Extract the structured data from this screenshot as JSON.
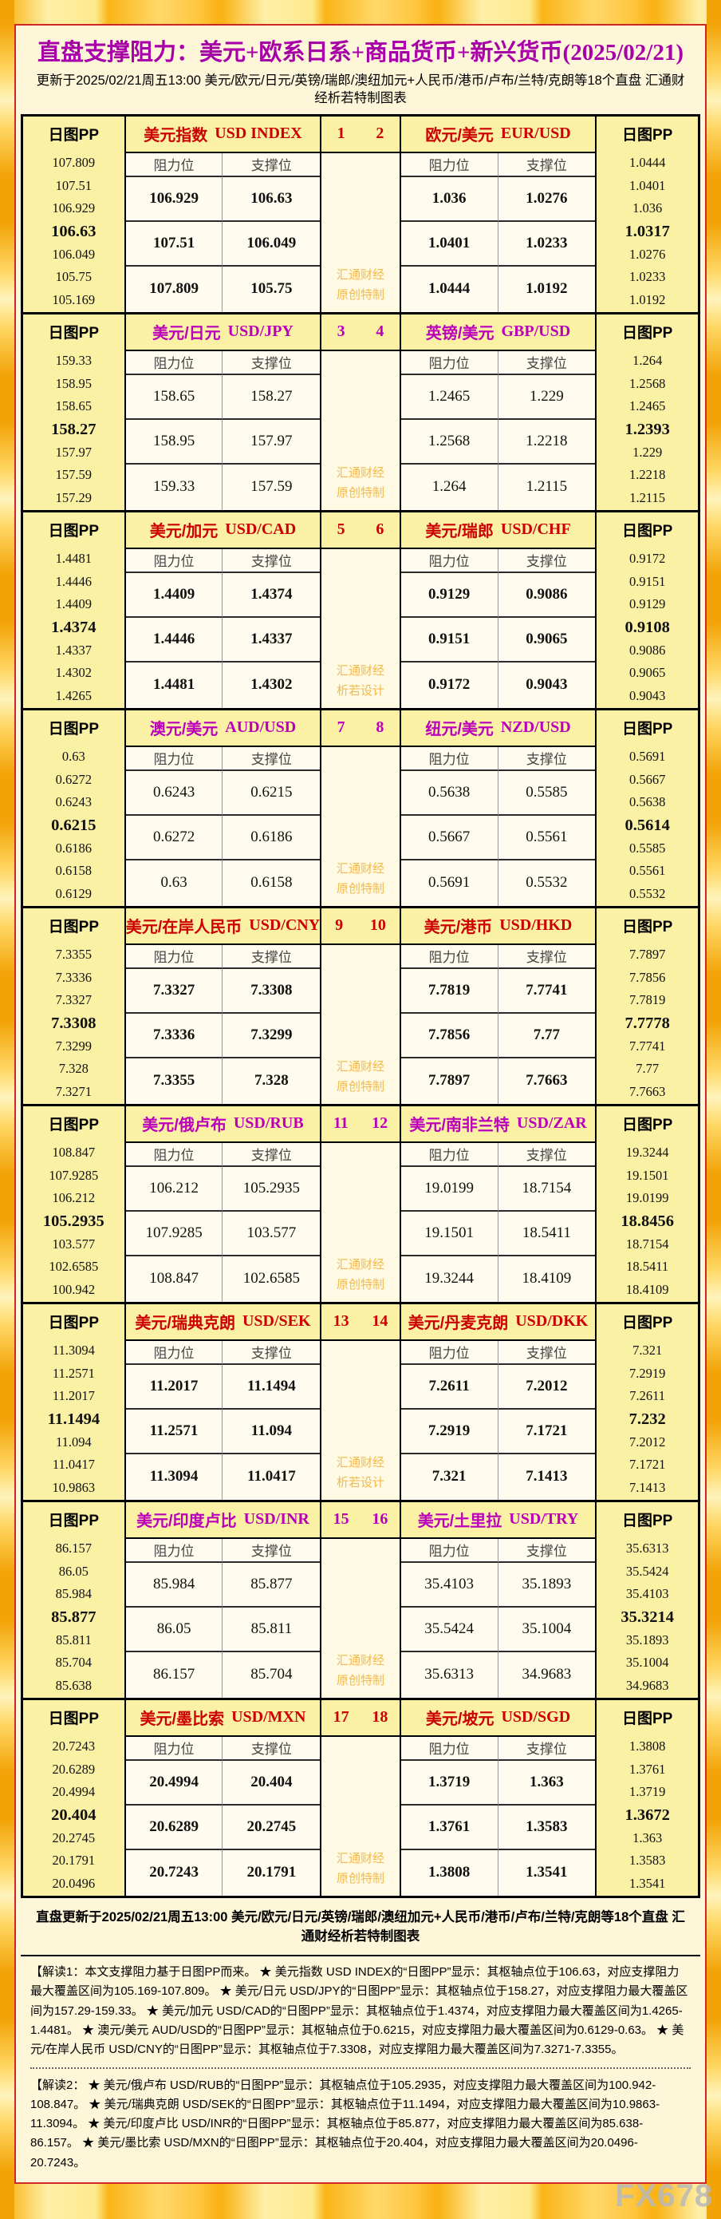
{
  "title": "直盘支撑阻力：美元+欧系日系+商品货币+新兴货币(2025/02/21)",
  "subtitle": "更新于2025/02/21周五13:00 美元/欧元/日元/英镑/瑞郎/澳纽加元+人民币/港币/卢布/兰特/克朗等18个直盘 汇通财经析若特制图表",
  "labels": {
    "pp_header": "日图PP",
    "resistance": "阻力位",
    "support": "支撑位"
  },
  "colors": {
    "accent_red": "#CC0000",
    "accent_purple": "#BB00BB",
    "title_purple": "#A800A8",
    "gold_frame": "#F6AA0C",
    "panel_bg": "#FDF6D8",
    "pp_column_bg": "#FAF1A4",
    "cell_bg": "#FFFCEF",
    "watermark_orange": "#F5B94B",
    "panel_border_red": "#CF2626"
  },
  "blocks": [
    {
      "num_left": "1",
      "num_right": "2",
      "accent": "red",
      "bold_values": true,
      "watermark_line1": "汇通财经",
      "watermark_line2": "原创特制",
      "left": {
        "pair_zh": "美元指数",
        "pair_en": "USD INDEX",
        "pp": [
          "107.809",
          "107.51",
          "106.929",
          "106.63",
          "106.049",
          "105.75",
          "105.169"
        ],
        "rows": [
          {
            "r": "106.929",
            "s": "106.63"
          },
          {
            "r": "107.51",
            "s": "106.049"
          },
          {
            "r": "107.809",
            "s": "105.75"
          }
        ]
      },
      "right": {
        "pair_zh": "欧元/美元",
        "pair_en": "EUR/USD",
        "pp": [
          "1.0444",
          "1.0401",
          "1.036",
          "1.0317",
          "1.0276",
          "1.0233",
          "1.0192"
        ],
        "rows": [
          {
            "r": "1.036",
            "s": "1.0276"
          },
          {
            "r": "1.0401",
            "s": "1.0233"
          },
          {
            "r": "1.0444",
            "s": "1.0192"
          }
        ]
      }
    },
    {
      "num_left": "3",
      "num_right": "4",
      "accent": "purple",
      "bold_values": false,
      "watermark_line1": "汇通财经",
      "watermark_line2": "原创特制",
      "left": {
        "pair_zh": "美元/日元",
        "pair_en": "USD/JPY",
        "pp": [
          "159.33",
          "158.95",
          "158.65",
          "158.27",
          "157.97",
          "157.59",
          "157.29"
        ],
        "rows": [
          {
            "r": "158.65",
            "s": "158.27"
          },
          {
            "r": "158.95",
            "s": "157.97"
          },
          {
            "r": "159.33",
            "s": "157.59"
          }
        ]
      },
      "right": {
        "pair_zh": "英镑/美元",
        "pair_en": "GBP/USD",
        "pp": [
          "1.264",
          "1.2568",
          "1.2465",
          "1.2393",
          "1.229",
          "1.2218",
          "1.2115"
        ],
        "rows": [
          {
            "r": "1.2465",
            "s": "1.229"
          },
          {
            "r": "1.2568",
            "s": "1.2218"
          },
          {
            "r": "1.264",
            "s": "1.2115"
          }
        ]
      }
    },
    {
      "num_left": "5",
      "num_right": "6",
      "accent": "red",
      "bold_values": true,
      "watermark_line1": "汇通财经",
      "watermark_line2": "析若设计",
      "left": {
        "pair_zh": "美元/加元",
        "pair_en": "USD/CAD",
        "pp": [
          "1.4481",
          "1.4446",
          "1.4409",
          "1.4374",
          "1.4337",
          "1.4302",
          "1.4265"
        ],
        "rows": [
          {
            "r": "1.4409",
            "s": "1.4374"
          },
          {
            "r": "1.4446",
            "s": "1.4337"
          },
          {
            "r": "1.4481",
            "s": "1.4302"
          }
        ]
      },
      "right": {
        "pair_zh": "美元/瑞郎",
        "pair_en": "USD/CHF",
        "pp": [
          "0.9172",
          "0.9151",
          "0.9129",
          "0.9108",
          "0.9086",
          "0.9065",
          "0.9043"
        ],
        "rows": [
          {
            "r": "0.9129",
            "s": "0.9086"
          },
          {
            "r": "0.9151",
            "s": "0.9065"
          },
          {
            "r": "0.9172",
            "s": "0.9043"
          }
        ]
      }
    },
    {
      "num_left": "7",
      "num_right": "8",
      "accent": "purple",
      "bold_values": false,
      "watermark_line1": "汇通财经",
      "watermark_line2": "原创特制",
      "left": {
        "pair_zh": "澳元/美元",
        "pair_en": "AUD/USD",
        "pp": [
          "0.63",
          "0.6272",
          "0.6243",
          "0.6215",
          "0.6186",
          "0.6158",
          "0.6129"
        ],
        "rows": [
          {
            "r": "0.6243",
            "s": "0.6215"
          },
          {
            "r": "0.6272",
            "s": "0.6186"
          },
          {
            "r": "0.63",
            "s": "0.6158"
          }
        ]
      },
      "right": {
        "pair_zh": "纽元/美元",
        "pair_en": "NZD/USD",
        "pp": [
          "0.5691",
          "0.5667",
          "0.5638",
          "0.5614",
          "0.5585",
          "0.5561",
          "0.5532"
        ],
        "rows": [
          {
            "r": "0.5638",
            "s": "0.5585"
          },
          {
            "r": "0.5667",
            "s": "0.5561"
          },
          {
            "r": "0.5691",
            "s": "0.5532"
          }
        ]
      }
    },
    {
      "num_left": "9",
      "num_right": "10",
      "accent": "red",
      "bold_values": true,
      "watermark_line1": "汇通财经",
      "watermark_line2": "原创特制",
      "left": {
        "pair_zh": "美元/在岸人民币",
        "pair_en": "USD/CNY",
        "pp": [
          "7.3355",
          "7.3336",
          "7.3327",
          "7.3308",
          "7.3299",
          "7.328",
          "7.3271"
        ],
        "rows": [
          {
            "r": "7.3327",
            "s": "7.3308"
          },
          {
            "r": "7.3336",
            "s": "7.3299"
          },
          {
            "r": "7.3355",
            "s": "7.328"
          }
        ]
      },
      "right": {
        "pair_zh": "美元/港币",
        "pair_en": "USD/HKD",
        "pp": [
          "7.7897",
          "7.7856",
          "7.7819",
          "7.7778",
          "7.7741",
          "7.77",
          "7.7663"
        ],
        "rows": [
          {
            "r": "7.7819",
            "s": "7.7741"
          },
          {
            "r": "7.7856",
            "s": "7.77"
          },
          {
            "r": "7.7897",
            "s": "7.7663"
          }
        ]
      }
    },
    {
      "num_left": "11",
      "num_right": "12",
      "accent": "purple",
      "bold_values": false,
      "watermark_line1": "汇通财经",
      "watermark_line2": "原创特制",
      "left": {
        "pair_zh": "美元/俄卢布",
        "pair_en": "USD/RUB",
        "pp": [
          "108.847",
          "107.9285",
          "106.212",
          "105.2935",
          "103.577",
          "102.6585",
          "100.942"
        ],
        "rows": [
          {
            "r": "106.212",
            "s": "105.2935"
          },
          {
            "r": "107.9285",
            "s": "103.577"
          },
          {
            "r": "108.847",
            "s": "102.6585"
          }
        ]
      },
      "right": {
        "pair_zh": "美元/南非兰特",
        "pair_en": "USD/ZAR",
        "pp": [
          "19.3244",
          "19.1501",
          "19.0199",
          "18.8456",
          "18.7154",
          "18.5411",
          "18.4109"
        ],
        "rows": [
          {
            "r": "19.0199",
            "s": "18.7154"
          },
          {
            "r": "19.1501",
            "s": "18.5411"
          },
          {
            "r": "19.3244",
            "s": "18.4109"
          }
        ]
      }
    },
    {
      "num_left": "13",
      "num_right": "14",
      "accent": "red",
      "bold_values": true,
      "watermark_line1": "汇通财经",
      "watermark_line2": "析若设计",
      "left": {
        "pair_zh": "美元/瑞典克朗",
        "pair_en": "USD/SEK",
        "pp": [
          "11.3094",
          "11.2571",
          "11.2017",
          "11.1494",
          "11.094",
          "11.0417",
          "10.9863"
        ],
        "rows": [
          {
            "r": "11.2017",
            "s": "11.1494"
          },
          {
            "r": "11.2571",
            "s": "11.094"
          },
          {
            "r": "11.3094",
            "s": "11.0417"
          }
        ]
      },
      "right": {
        "pair_zh": "美元/丹麦克朗",
        "pair_en": "USD/DKK",
        "pp": [
          "7.321",
          "7.2919",
          "7.2611",
          "7.232",
          "7.2012",
          "7.1721",
          "7.1413"
        ],
        "rows": [
          {
            "r": "7.2611",
            "s": "7.2012"
          },
          {
            "r": "7.2919",
            "s": "7.1721"
          },
          {
            "r": "7.321",
            "s": "7.1413"
          }
        ]
      }
    },
    {
      "num_left": "15",
      "num_right": "16",
      "accent": "purple",
      "bold_values": false,
      "watermark_line1": "汇通财经",
      "watermark_line2": "原创特制",
      "left": {
        "pair_zh": "美元/印度卢比",
        "pair_en": "USD/INR",
        "pp": [
          "86.157",
          "86.05",
          "85.984",
          "85.877",
          "85.811",
          "85.704",
          "85.638"
        ],
        "rows": [
          {
            "r": "85.984",
            "s": "85.877"
          },
          {
            "r": "86.05",
            "s": "85.811"
          },
          {
            "r": "86.157",
            "s": "85.704"
          }
        ]
      },
      "right": {
        "pair_zh": "美元/土里拉",
        "pair_en": "USD/TRY",
        "pp": [
          "35.6313",
          "35.5424",
          "35.4103",
          "35.3214",
          "35.1893",
          "35.1004",
          "34.9683"
        ],
        "rows": [
          {
            "r": "35.4103",
            "s": "35.1893"
          },
          {
            "r": "35.5424",
            "s": "35.1004"
          },
          {
            "r": "35.6313",
            "s": "34.9683"
          }
        ]
      }
    },
    {
      "num_left": "17",
      "num_right": "18",
      "accent": "red",
      "bold_values": true,
      "watermark_line1": "汇通财经",
      "watermark_line2": "原创特制",
      "left": {
        "pair_zh": "美元/墨比索",
        "pair_en": "USD/MXN",
        "pp": [
          "20.7243",
          "20.6289",
          "20.4994",
          "20.404",
          "20.2745",
          "20.1791",
          "20.0496"
        ],
        "rows": [
          {
            "r": "20.4994",
            "s": "20.404"
          },
          {
            "r": "20.6289",
            "s": "20.2745"
          },
          {
            "r": "20.7243",
            "s": "20.1791"
          }
        ]
      },
      "right": {
        "pair_zh": "美元/坡元",
        "pair_en": "USD/SGD",
        "pp": [
          "1.3808",
          "1.3761",
          "1.3719",
          "1.3672",
          "1.363",
          "1.3583",
          "1.3541"
        ],
        "rows": [
          {
            "r": "1.3719",
            "s": "1.363"
          },
          {
            "r": "1.3761",
            "s": "1.3583"
          },
          {
            "r": "1.3808",
            "s": "1.3541"
          }
        ]
      }
    }
  ],
  "footer": {
    "update_line": "直盘更新于2025/02/21周五13:00 美元/欧元/日元/英镑/瑞郎/澳纽加元+人民币/港币/卢布/兰特/克朗等18个直盘 汇通财经析若特制图表",
    "note1": "【解读1：本文支撑阻力基于日图PP而来。 ★ 美元指数 USD INDEX的“日图PP”显示：其枢轴点位于106.63，对应支撑阻力最大覆盖区间为105.169-107.809。 ★ 美元/日元 USD/JPY的“日图PP”显示：其枢轴点位于158.27，对应支撑阻力最大覆盖区间为157.29-159.33。 ★ 美元/加元 USD/CAD的“日图PP”显示：其枢轴点位于1.4374，对应支撑阻力最大覆盖区间为1.4265-1.4481。 ★ 澳元/美元 AUD/USD的“日图PP”显示：其枢轴点位于0.6215，对应支撑阻力最大覆盖区间为0.6129-0.63。 ★ 美元/在岸人民币 USD/CNY的“日图PP”显示：其枢轴点位于7.3308，对应支撑阻力最大覆盖区间为7.3271-7.3355。",
    "note2": "【解读2： ★ 美元/俄卢布 USD/RUB的“日图PP”显示：其枢轴点位于105.2935，对应支撑阻力最大覆盖区间为100.942-108.847。 ★ 美元/瑞典克朗 USD/SEK的“日图PP”显示：其枢轴点位于11.1494，对应支撑阻力最大覆盖区间为10.9863-11.3094。 ★ 美元/印度卢比 USD/INR的“日图PP”显示：其枢轴点位于85.877，对应支撑阻力最大覆盖区间为85.638-86.157。 ★ 美元/墨比索 USD/MXN的“日图PP”显示：其枢轴点位于20.404，对应支撑阻力最大覆盖区间为20.0496-20.7243。",
    "brand": "FX678"
  }
}
